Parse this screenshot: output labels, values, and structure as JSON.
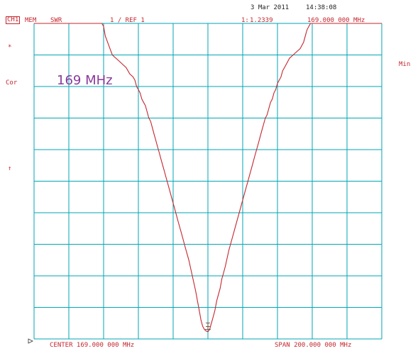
{
  "header": {
    "date": "3 Mar 2011",
    "time": "14:38:08",
    "channel": "CH1",
    "memory": "MEM",
    "format": "SWR",
    "scale": "1  / REF 1",
    "marker_label": "1:",
    "marker_value": "1.2339",
    "marker_freq": "169.000 000 MHz"
  },
  "side": {
    "star": "*",
    "cor": "Cor",
    "arrow": "↑",
    "min": "Min"
  },
  "footer": {
    "center": "CENTER 169.000 000 MHz",
    "span": "SPAN 200.000 000 MHz"
  },
  "colors": {
    "grid": "#00a6b4",
    "trace": "#c4262e",
    "annotation": "#8a3a9a"
  },
  "chart_data": {
    "type": "line",
    "annotation": "169 MHz",
    "xlim": [
      69,
      269
    ],
    "ylim": [
      1,
      11
    ],
    "grid": true,
    "x_divisions": 10,
    "y_divisions": 10,
    "series": [
      {
        "x": [
          69,
          108,
          109,
          110,
          112,
          114,
          116,
          118,
          120,
          122,
          124,
          126,
          127,
          128,
          129,
          130,
          131,
          132,
          133,
          134,
          135,
          136,
          137,
          138,
          139,
          140,
          141,
          142,
          143,
          144,
          145,
          146,
          148,
          150,
          152,
          154,
          156,
          158,
          160,
          162,
          163,
          164,
          165,
          166,
          167,
          168,
          169,
          170,
          171,
          172,
          173,
          174,
          175,
          176,
          177,
          178,
          179,
          181,
          183,
          185,
          187,
          189,
          190,
          191,
          192,
          193,
          194,
          195,
          196,
          197,
          198,
          199,
          200,
          201,
          202,
          203,
          204,
          205,
          206,
          207,
          208,
          209,
          210,
          211,
          212,
          214,
          215,
          216,
          218,
          220,
          222,
          224,
          225,
          226,
          227,
          228,
          229,
          230,
          269
        ],
        "y": [
          11,
          11,
          10.9,
          10.6,
          10.3,
          10,
          9.9,
          9.8,
          9.7,
          9.6,
          9.4,
          9.3,
          9.2,
          9.0,
          8.9,
          8.8,
          8.6,
          8.5,
          8.4,
          8.2,
          8.0,
          7.9,
          7.7,
          7.5,
          7.3,
          7.1,
          6.9,
          6.7,
          6.5,
          6.3,
          6.1,
          5.9,
          5.5,
          5.1,
          4.7,
          4.3,
          3.9,
          3.5,
          3.0,
          2.5,
          2.2,
          1.9,
          1.6,
          1.4,
          1.3,
          1.25,
          1.23,
          1.3,
          1.5,
          1.7,
          1.9,
          2.2,
          2.4,
          2.6,
          2.9,
          3.1,
          3.3,
          3.8,
          4.2,
          4.6,
          5.0,
          5.4,
          5.6,
          5.8,
          6.0,
          6.2,
          6.4,
          6.6,
          6.8,
          7.0,
          7.2,
          7.4,
          7.6,
          7.8,
          8.0,
          8.1,
          8.3,
          8.5,
          8.6,
          8.8,
          8.9,
          9.1,
          9.2,
          9.3,
          9.5,
          9.7,
          9.8,
          9.9,
          10.0,
          10.1,
          10.2,
          10.4,
          10.6,
          10.8,
          10.9,
          11,
          11,
          11,
          11
        ]
      }
    ],
    "marker": {
      "x": 169,
      "y": 1.2339
    }
  }
}
